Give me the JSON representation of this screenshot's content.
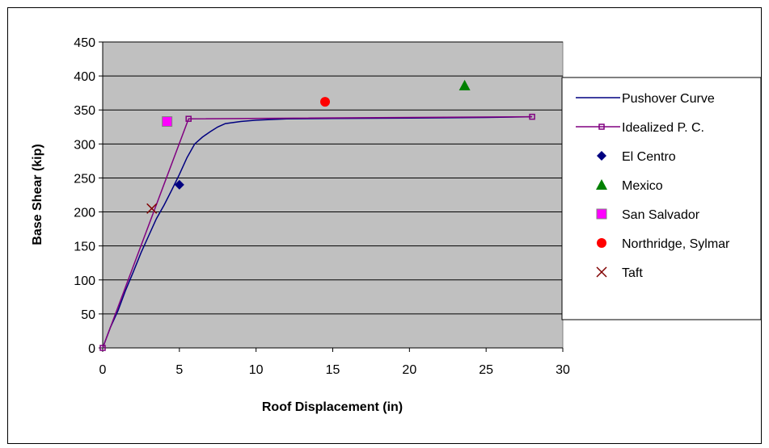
{
  "chart_data": {
    "type": "scatter",
    "title": "",
    "xlabel": "Roof Displacement (in)",
    "ylabel": "Base Shear (kip)",
    "xlim": [
      0,
      30
    ],
    "ylim": [
      0,
      450
    ],
    "x_ticks": [
      "0",
      "5",
      "10",
      "15",
      "20",
      "25",
      "30"
    ],
    "y_ticks": [
      "0",
      "50",
      "100",
      "150",
      "200",
      "250",
      "300",
      "350",
      "400",
      "450"
    ],
    "grid": "horizontal",
    "legend_position": "right",
    "plot_background": "#c0c0c0",
    "series": [
      {
        "name": "Pushover Curve",
        "kind": "line",
        "color": "#000080",
        "points": [
          [
            0,
            0
          ],
          [
            0.5,
            30
          ],
          [
            1,
            55
          ],
          [
            1.5,
            85
          ],
          [
            2,
            112
          ],
          [
            2.5,
            140
          ],
          [
            3,
            165
          ],
          [
            3.5,
            190
          ],
          [
            4,
            210
          ],
          [
            4.5,
            232
          ],
          [
            5,
            255
          ],
          [
            5.5,
            280
          ],
          [
            6,
            300
          ],
          [
            6.5,
            310
          ],
          [
            7,
            318
          ],
          [
            7.5,
            325
          ],
          [
            8,
            330
          ],
          [
            9,
            333
          ],
          [
            10,
            335
          ],
          [
            12,
            337
          ],
          [
            15,
            337.5
          ],
          [
            20,
            338
          ],
          [
            25,
            339
          ],
          [
            28,
            340
          ]
        ]
      },
      {
        "name": "Idealized P. C.",
        "kind": "line-marker",
        "color": "#800080",
        "points": [
          [
            0,
            0
          ],
          [
            5.6,
            337
          ],
          [
            28,
            340
          ]
        ]
      },
      {
        "name": "El Centro",
        "kind": "marker",
        "marker": "diamond",
        "color": "#000080",
        "points": [
          [
            5,
            240
          ]
        ]
      },
      {
        "name": "Mexico",
        "kind": "marker",
        "marker": "triangle",
        "color": "#008000",
        "points": [
          [
            23.6,
            386
          ]
        ]
      },
      {
        "name": "San Salvador",
        "kind": "marker",
        "marker": "square",
        "color": "#ff00ff",
        "points": [
          [
            4.2,
            333
          ]
        ]
      },
      {
        "name": "Northridge, Sylmar",
        "kind": "marker",
        "marker": "circle",
        "color": "#ff0000",
        "points": [
          [
            14.5,
            362
          ]
        ]
      },
      {
        "name": "Taft",
        "kind": "marker",
        "marker": "x",
        "color": "#800000",
        "points": [
          [
            3.2,
            205
          ]
        ]
      }
    ]
  }
}
